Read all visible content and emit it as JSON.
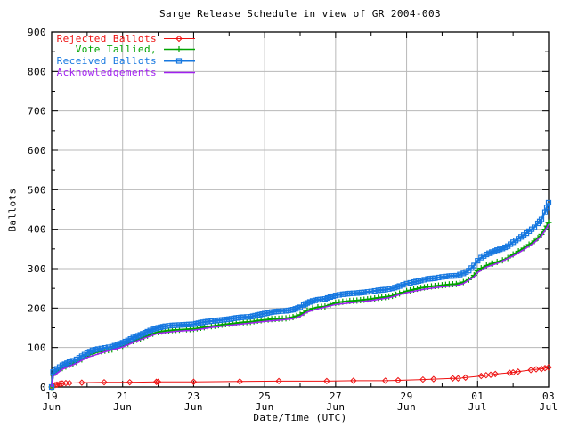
{
  "chart_data": {
    "type": "line",
    "title": "Sarge Release Schedule in view of GR 2004-003",
    "xlabel": "Date/Time (UTC)",
    "ylabel": "Ballots",
    "grid": true,
    "legend_position": "top-left-inside",
    "x_axis": {
      "unit": "days since Jun 19 00:00 UTC",
      "min": 0,
      "max": 14,
      "major_ticks": [
        {
          "pos": 0,
          "line1": "19",
          "line2": "Jun"
        },
        {
          "pos": 2,
          "line1": "21",
          "line2": "Jun"
        },
        {
          "pos": 4,
          "line1": "23",
          "line2": "Jun"
        },
        {
          "pos": 6,
          "line1": "25",
          "line2": "Jun"
        },
        {
          "pos": 8,
          "line1": "27",
          "line2": "Jun"
        },
        {
          "pos": 10,
          "line1": "29",
          "line2": "Jun"
        },
        {
          "pos": 12,
          "line1": "01",
          "line2": "Jul"
        },
        {
          "pos": 14,
          "line1": "03",
          "line2": "Jul"
        }
      ],
      "minor_tick_positions": [
        1,
        3,
        5,
        7,
        9,
        11,
        13
      ]
    },
    "y_axis": {
      "min": 0,
      "max": 900,
      "major_ticks": [
        0,
        100,
        200,
        300,
        400,
        500,
        600,
        700,
        800,
        900
      ],
      "minor_tick_positions": [
        50,
        150,
        250,
        350,
        450,
        550,
        650,
        750,
        850
      ]
    },
    "series": [
      {
        "name": "Rejected Ballots",
        "color": "#ee1111",
        "marker": "diamond",
        "line_width": 1,
        "marker_every_days": null,
        "points": [
          [
            0,
            0
          ],
          [
            0.1,
            5
          ],
          [
            0.15,
            6
          ],
          [
            0.23,
            8
          ],
          [
            0.3,
            9
          ],
          [
            0.4,
            10
          ],
          [
            0.5,
            10
          ],
          [
            0.85,
            11
          ],
          [
            1.48,
            12
          ],
          [
            2.2,
            12
          ],
          [
            2.95,
            13
          ],
          [
            3.0,
            13
          ],
          [
            4.0,
            13
          ],
          [
            5.3,
            14
          ],
          [
            6.4,
            15
          ],
          [
            7.75,
            15
          ],
          [
            8.5,
            16
          ],
          [
            9.4,
            16
          ],
          [
            9.76,
            17
          ],
          [
            10.46,
            19
          ],
          [
            10.76,
            20
          ],
          [
            11.3,
            22
          ],
          [
            11.45,
            22
          ],
          [
            11.66,
            24
          ],
          [
            12.1,
            28
          ],
          [
            12.24,
            30
          ],
          [
            12.37,
            31
          ],
          [
            12.5,
            33
          ],
          [
            12.9,
            36
          ],
          [
            13.0,
            37
          ],
          [
            13.14,
            39
          ],
          [
            13.5,
            43
          ],
          [
            13.65,
            45
          ],
          [
            13.8,
            46
          ],
          [
            13.9,
            48
          ],
          [
            14.0,
            50
          ]
        ]
      },
      {
        "name": "Vote Tallied,",
        "color": "#00a400",
        "marker": "plus",
        "line_width": 2,
        "marker_every_days": 0.18,
        "points": [
          [
            0,
            0
          ],
          [
            0.04,
            30
          ],
          [
            0.15,
            40
          ],
          [
            0.3,
            48
          ],
          [
            0.5,
            56
          ],
          [
            0.7,
            63
          ],
          [
            0.85,
            70
          ],
          [
            1.0,
            78
          ],
          [
            1.15,
            85
          ],
          [
            1.3,
            89
          ],
          [
            1.5,
            92
          ],
          [
            1.7,
            95
          ],
          [
            1.85,
            99
          ],
          [
            2.0,
            104
          ],
          [
            2.15,
            110
          ],
          [
            2.3,
            116
          ],
          [
            2.5,
            123
          ],
          [
            2.7,
            130
          ],
          [
            2.85,
            135
          ],
          [
            3.0,
            139
          ],
          [
            3.2,
            142
          ],
          [
            3.4,
            144
          ],
          [
            3.6,
            145
          ],
          [
            3.8,
            146
          ],
          [
            4.0,
            147
          ],
          [
            4.2,
            150
          ],
          [
            4.4,
            153
          ],
          [
            4.6,
            155
          ],
          [
            4.8,
            158
          ],
          [
            5.0,
            160
          ],
          [
            5.2,
            162
          ],
          [
            5.4,
            164
          ],
          [
            5.6,
            165
          ],
          [
            5.8,
            168
          ],
          [
            6.0,
            170
          ],
          [
            6.2,
            172
          ],
          [
            6.4,
            173
          ],
          [
            6.6,
            174
          ],
          [
            6.8,
            177
          ],
          [
            7.0,
            183
          ],
          [
            7.1,
            188
          ],
          [
            7.2,
            194
          ],
          [
            7.35,
            199
          ],
          [
            7.5,
            202
          ],
          [
            7.7,
            204
          ],
          [
            7.85,
            209
          ],
          [
            8.0,
            213
          ],
          [
            8.2,
            216
          ],
          [
            8.4,
            218
          ],
          [
            8.6,
            219
          ],
          [
            8.8,
            221
          ],
          [
            9.0,
            223
          ],
          [
            9.2,
            226
          ],
          [
            9.4,
            228
          ],
          [
            9.6,
            231
          ],
          [
            9.8,
            237
          ],
          [
            10.0,
            243
          ],
          [
            10.2,
            247
          ],
          [
            10.4,
            251
          ],
          [
            10.6,
            254
          ],
          [
            10.8,
            256
          ],
          [
            11.0,
            258
          ],
          [
            11.2,
            260
          ],
          [
            11.4,
            261
          ],
          [
            11.6,
            266
          ],
          [
            11.75,
            272
          ],
          [
            11.9,
            283
          ],
          [
            12.0,
            294
          ],
          [
            12.1,
            301
          ],
          [
            12.25,
            308
          ],
          [
            12.4,
            313
          ],
          [
            12.55,
            317
          ],
          [
            12.7,
            321
          ],
          [
            12.85,
            327
          ],
          [
            13.0,
            336
          ],
          [
            13.15,
            344
          ],
          [
            13.3,
            352
          ],
          [
            13.45,
            361
          ],
          [
            13.6,
            370
          ],
          [
            13.7,
            378
          ],
          [
            13.8,
            387
          ],
          [
            13.9,
            400
          ],
          [
            13.95,
            408
          ],
          [
            14.0,
            417
          ]
        ]
      },
      {
        "name": "Received Ballots",
        "color": "#1778e0",
        "marker": "square",
        "line_width": 2.5,
        "marker_every_days": 0.1,
        "points": [
          [
            0,
            0
          ],
          [
            0.04,
            38
          ],
          [
            0.15,
            46
          ],
          [
            0.3,
            55
          ],
          [
            0.5,
            63
          ],
          [
            0.7,
            70
          ],
          [
            0.85,
            78
          ],
          [
            1.0,
            86
          ],
          [
            1.15,
            93
          ],
          [
            1.3,
            96
          ],
          [
            1.5,
            99
          ],
          [
            1.7,
            102
          ],
          [
            1.85,
            107
          ],
          [
            2.0,
            112
          ],
          [
            2.15,
            118
          ],
          [
            2.3,
            125
          ],
          [
            2.5,
            132
          ],
          [
            2.7,
            140
          ],
          [
            2.85,
            146
          ],
          [
            3.0,
            150
          ],
          [
            3.2,
            154
          ],
          [
            3.4,
            156
          ],
          [
            3.6,
            157
          ],
          [
            3.8,
            158
          ],
          [
            4.0,
            159
          ],
          [
            4.2,
            163
          ],
          [
            4.4,
            166
          ],
          [
            4.6,
            168
          ],
          [
            4.8,
            170
          ],
          [
            5.0,
            172
          ],
          [
            5.2,
            175
          ],
          [
            5.4,
            177
          ],
          [
            5.6,
            178
          ],
          [
            5.8,
            182
          ],
          [
            6.0,
            186
          ],
          [
            6.2,
            190
          ],
          [
            6.4,
            192
          ],
          [
            6.6,
            193
          ],
          [
            6.8,
            196
          ],
          [
            7.0,
            202
          ],
          [
            7.1,
            208
          ],
          [
            7.2,
            213
          ],
          [
            7.35,
            218
          ],
          [
            7.5,
            221
          ],
          [
            7.7,
            223
          ],
          [
            7.85,
            228
          ],
          [
            8.0,
            232
          ],
          [
            8.2,
            235
          ],
          [
            8.4,
            237
          ],
          [
            8.6,
            238
          ],
          [
            8.8,
            240
          ],
          [
            9.0,
            242
          ],
          [
            9.2,
            245
          ],
          [
            9.4,
            247
          ],
          [
            9.6,
            250
          ],
          [
            9.8,
            256
          ],
          [
            10.0,
            262
          ],
          [
            10.2,
            266
          ],
          [
            10.4,
            270
          ],
          [
            10.6,
            274
          ],
          [
            10.8,
            276
          ],
          [
            11.0,
            279
          ],
          [
            11.2,
            281
          ],
          [
            11.4,
            282
          ],
          [
            11.6,
            288
          ],
          [
            11.75,
            295
          ],
          [
            11.9,
            308
          ],
          [
            12.0,
            320
          ],
          [
            12.1,
            328
          ],
          [
            12.25,
            336
          ],
          [
            12.4,
            342
          ],
          [
            12.55,
            347
          ],
          [
            12.7,
            351
          ],
          [
            12.85,
            357
          ],
          [
            13.0,
            367
          ],
          [
            13.15,
            376
          ],
          [
            13.3,
            385
          ],
          [
            13.45,
            395
          ],
          [
            13.6,
            405
          ],
          [
            13.7,
            415
          ],
          [
            13.8,
            425
          ],
          [
            13.9,
            443
          ],
          [
            13.95,
            455
          ],
          [
            14.0,
            467
          ]
        ]
      },
      {
        "name": "Acknowledgements",
        "color": "#a020f0",
        "marker": "none",
        "line_width": 1.5,
        "marker_every_days": null,
        "points": [
          [
            0,
            0
          ],
          [
            0.04,
            27
          ],
          [
            0.3,
            45
          ],
          [
            0.7,
            60
          ],
          [
            1.0,
            75
          ],
          [
            1.5,
            89
          ],
          [
            2.0,
            101
          ],
          [
            2.5,
            120
          ],
          [
            3.0,
            136
          ],
          [
            3.5,
            141
          ],
          [
            4.0,
            144
          ],
          [
            4.5,
            151
          ],
          [
            5.0,
            156
          ],
          [
            5.5,
            161
          ],
          [
            6.0,
            166
          ],
          [
            6.5,
            170
          ],
          [
            6.8,
            173
          ],
          [
            7.0,
            179
          ],
          [
            7.2,
            190
          ],
          [
            7.5,
            198
          ],
          [
            8.0,
            209
          ],
          [
            8.5,
            214
          ],
          [
            9.0,
            219
          ],
          [
            9.5,
            226
          ],
          [
            10.0,
            239
          ],
          [
            10.5,
            248
          ],
          [
            11.0,
            254
          ],
          [
            11.4,
            257
          ],
          [
            11.6,
            262
          ],
          [
            11.9,
            279
          ],
          [
            12.0,
            290
          ],
          [
            12.25,
            304
          ],
          [
            12.55,
            313
          ],
          [
            13.0,
            332
          ],
          [
            13.3,
            348
          ],
          [
            13.6,
            366
          ],
          [
            13.8,
            383
          ],
          [
            13.9,
            396
          ],
          [
            14.0,
            413
          ]
        ]
      }
    ]
  },
  "colors": {
    "background": "#ffffff",
    "border": "#000000",
    "grid": "#b8b8b8",
    "text": "#000000"
  }
}
